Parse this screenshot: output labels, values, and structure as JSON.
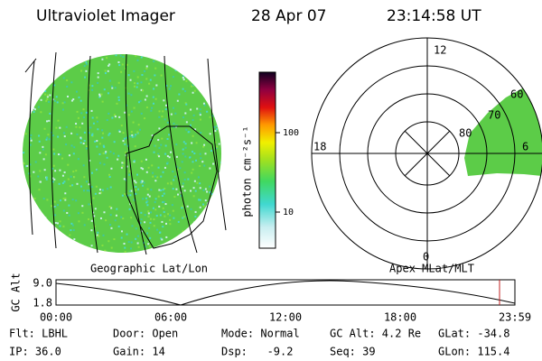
{
  "header": {
    "title": "Ultraviolet Imager",
    "date": "28 Apr 07",
    "time": "23:14:58 UT"
  },
  "colorbar": {
    "label": "photon cm⁻²s⁻¹",
    "ticks": [
      "100",
      "10"
    ]
  },
  "polar": {
    "mlt_labels": [
      "12",
      "18",
      "6",
      "0"
    ],
    "lat_labels": [
      "60",
      "70",
      "80"
    ]
  },
  "panel_labels": [
    "Geographic Lat/Lon",
    "Apex MLat/MLT"
  ],
  "orbit_plot": {
    "ylabel": "GC Alt",
    "yticks": [
      "9.0",
      "1.8"
    ],
    "xticks": [
      "00:00",
      "06:00",
      "12:00",
      "18:00",
      "23:59"
    ]
  },
  "footer": {
    "rows": [
      [
        "Flt: LBHL",
        "Door: Open",
        "Mode: Normal",
        "GC Alt: 4.2 Re",
        "GLat: -34.8"
      ],
      [
        "IP: 36.0",
        "Gain: 14",
        "Dsp:   -9.2",
        "Seq: 39",
        "GLon: 115.4"
      ]
    ]
  }
}
